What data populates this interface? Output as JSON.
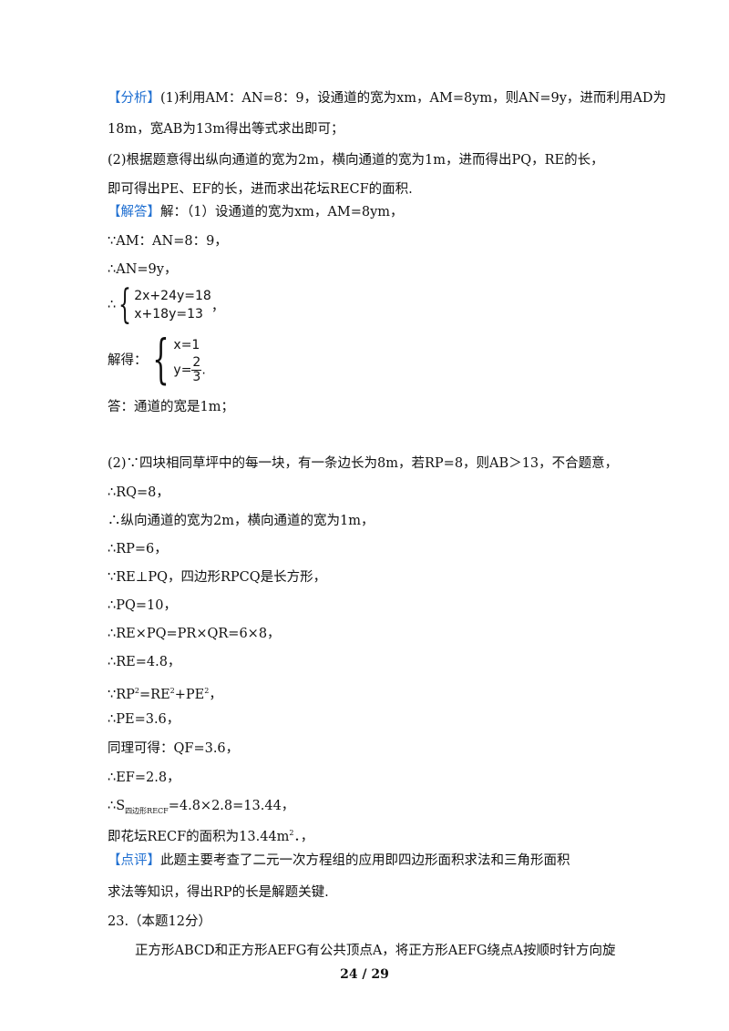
{
  "analysis": {
    "tag": "【分析】",
    "lines": [
      "(1)利用AM：AN=8：9，设通道的宽为xm，AM=8ym，则AN=9y，进而利用AD为",
      "18m，宽AB为13m得出等式求出即可；",
      "(2)根据题意得出纵向通道的宽为2m，横向通道的宽为1m，进而得出PQ，RE的长，",
      "即可得出PE、EF的长，进而求出花坛RECF的面积."
    ]
  },
  "solution": {
    "tag": "【解答】",
    "first": "解：（1）设通道的宽为xm，AM=8ym，",
    "l1": "∵AM：AN=8：9，",
    "l2": "∴AN=9y，",
    "sys_prefix": "∴",
    "eq1": "2x+24y=18",
    "eq2": "x+18y=13",
    "sys_suffix": "，",
    "solve_label": "解得：",
    "sol1": "x=1",
    "sol2_left": "y=",
    "sol2_num": "2",
    "sol2_den": "3",
    "sol2_suffix": ".",
    "answer1": "答：通道的宽是1m；",
    "part2": [
      "(2)∵四块相同草坪中的每一块，有一条边长为8m，若RP=8，则AB＞13，不合题意，",
      "∴RQ=8，",
      "∴纵向通道的宽为2m，横向通道的宽为1m，",
      "∴RP=6，",
      "∵RE⊥PQ，四边形RPCQ是长方形，",
      "∴PQ=10，",
      "∴RE×PQ=PR×QR=6×8，",
      "∴RE=4.8，"
    ],
    "pyth": {
      "a": "∵RP",
      "b": "=RE",
      "c": "+PE",
      "d": "，",
      "sup": "2"
    },
    "part2b": [
      "∴PE=3.6，",
      "同理可得：QF=3.6，",
      "∴EF=2.8，"
    ],
    "area": {
      "pre": "∴S",
      "sub": "四边形RECF",
      "post": "=4.8×2.8=13.44，"
    },
    "final": {
      "pre": "即花坛RECF的面积为13.44m",
      "sup": "2",
      "post": "．，"
    }
  },
  "comment": {
    "tag": "【点评】",
    "lines": [
      "此题主要考查了二元一次方程组的应用即四边形面积求法和三角形面积",
      "求法等知识，得出RP的长是解题关键."
    ]
  },
  "q23": {
    "title": "23.（本题12分）",
    "text": "正方形ABCD和正方形AEFG有公共顶点A，将正方形AEFG绕点A按顺时针方向旋"
  },
  "page_number": "24 / 29"
}
